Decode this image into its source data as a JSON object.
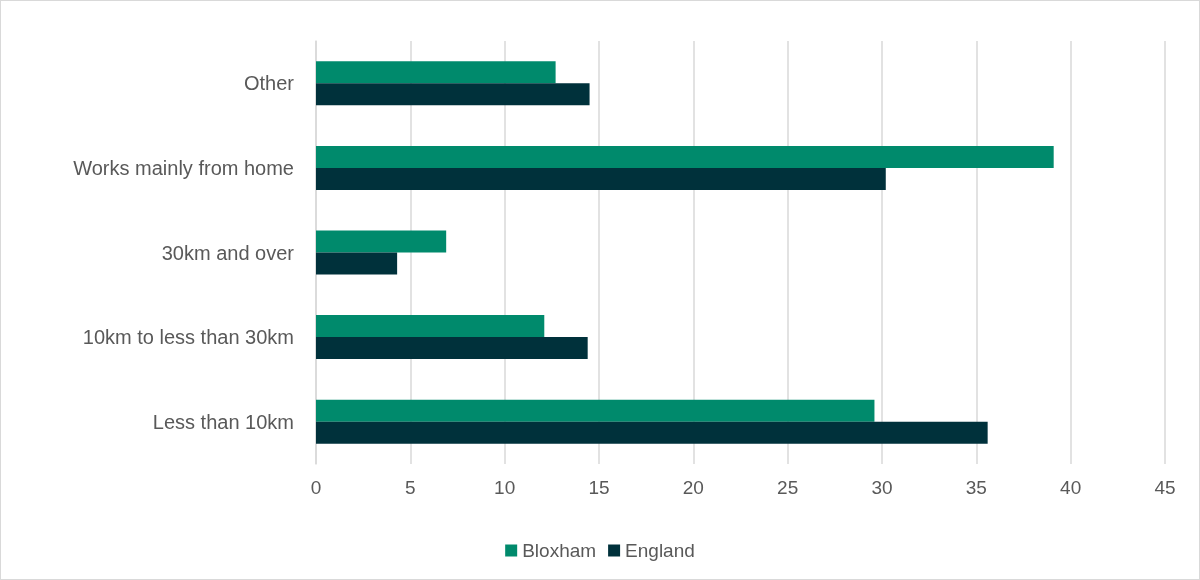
{
  "chart_data": {
    "type": "bar",
    "orientation": "horizontal",
    "categories": [
      "Other",
      "Works mainly from home",
      "30km and over",
      "10km to less than 30km",
      "Less than 10km"
    ],
    "series": [
      {
        "name": "Bloxham",
        "color": "#008a6c",
        "values": [
          12.7,
          39.1,
          6.9,
          12.1,
          29.6
        ]
      },
      {
        "name": "England",
        "color": "#00313b",
        "values": [
          14.5,
          30.2,
          4.3,
          14.4,
          35.6
        ]
      }
    ],
    "xlim": [
      0,
      45
    ],
    "xticks": [
      0,
      5,
      10,
      15,
      20,
      25,
      30,
      35,
      40,
      45
    ],
    "grid": "x",
    "legend": "bottom"
  }
}
